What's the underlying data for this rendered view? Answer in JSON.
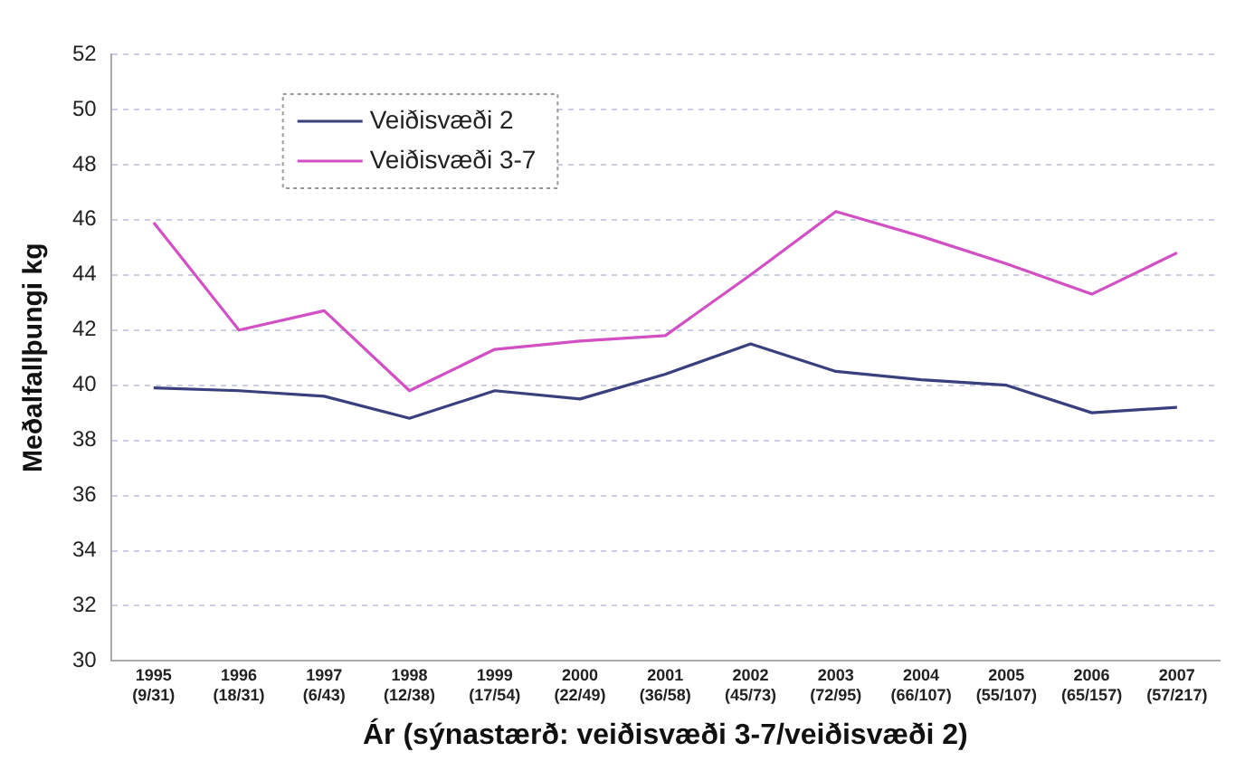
{
  "chart_data": {
    "type": "line",
    "xlabel": "Ár (sýnastærð: veiðisvæði 3-7/veiðisvæði 2)",
    "ylabel": "Meðalfallþungi kg",
    "categories": [
      "1995\n(9/31)",
      "1996\n(18/31)",
      "1997\n(6/43)",
      "1998\n(12/38)",
      "1999\n(17/54)",
      "2000\n(22/49)",
      "2001\n(36/58)",
      "2002\n(45/73)",
      "2003\n(72/95)",
      "2004\n(66/107)",
      "2005\n(55/107)",
      "2006\n(65/157)",
      "2007\n(57/217)"
    ],
    "series": [
      {
        "name": "Veiðisvæði 2",
        "color": "#3a3f7e",
        "values": [
          39.9,
          39.8,
          39.6,
          38.8,
          39.8,
          39.5,
          40.4,
          41.5,
          40.5,
          40.2,
          40.0,
          39.0,
          39.2
        ]
      },
      {
        "name": "Veiðisvæði 3-7",
        "color": "#d24fc4",
        "values": [
          45.9,
          42.0,
          42.7,
          39.8,
          41.3,
          41.6,
          41.8,
          44.0,
          46.3,
          45.4,
          44.4,
          43.3,
          44.8
        ]
      }
    ],
    "ylim": [
      30,
      52
    ],
    "yticks": [
      30,
      32,
      34,
      36,
      38,
      40,
      42,
      44,
      46,
      48,
      50,
      52
    ],
    "grid": "y",
    "legend": "top left",
    "marker": "none",
    "line_style": "solid"
  }
}
